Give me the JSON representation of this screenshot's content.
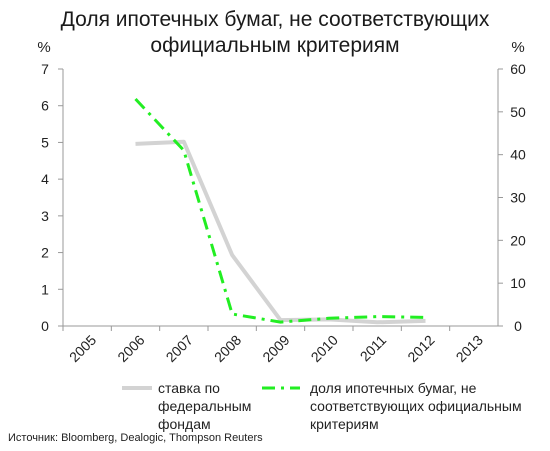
{
  "title_line1": "Доля ипотечных бумаг, не соответствующих",
  "title_line2": "официальным критериям",
  "source": "Источник: Bloomberg, Dealogic, Thompson Reuters",
  "colors": {
    "rate": "#d3d3d3",
    "share": "#22ee22",
    "axis": "#999999"
  },
  "chart_data": {
    "type": "line",
    "x": [
      "2005",
      "2006",
      "2007",
      "2008",
      "2009",
      "2010",
      "2011",
      "2012",
      "2013"
    ],
    "left_axis": {
      "label": "%",
      "ylim": [
        0,
        7
      ],
      "ticks": [
        "0",
        "1",
        "2",
        "3",
        "4",
        "5",
        "6",
        "7"
      ]
    },
    "right_axis": {
      "label": "%",
      "ylim": [
        0,
        60
      ],
      "ticks": [
        "0",
        "10",
        "20",
        "30",
        "40",
        "50",
        "60"
      ]
    },
    "series": [
      {
        "name": "ставка по федеральным фондам",
        "legend_lines": [
          "ставка по",
          "федеральным",
          "фондам"
        ],
        "axis": "left",
        "x": [
          "2006",
          "2007",
          "2008",
          "2009",
          "2010",
          "2011",
          "2012"
        ],
        "values": [
          4.96,
          5.02,
          1.93,
          0.16,
          0.18,
          0.1,
          0.14
        ]
      },
      {
        "name": "доля ипотечных бумаг, не соответствующих официальным критериям",
        "legend_lines": [
          "доля ипотечных бумаг, не",
          "соответствующих официальным",
          "критериям"
        ],
        "axis": "right",
        "x": [
          "2006",
          "2007",
          "2008",
          "2009",
          "2010",
          "2011",
          "2012"
        ],
        "values": [
          53,
          41,
          2.8,
          0.9,
          1.8,
          2.2,
          2.0
        ]
      }
    ]
  }
}
